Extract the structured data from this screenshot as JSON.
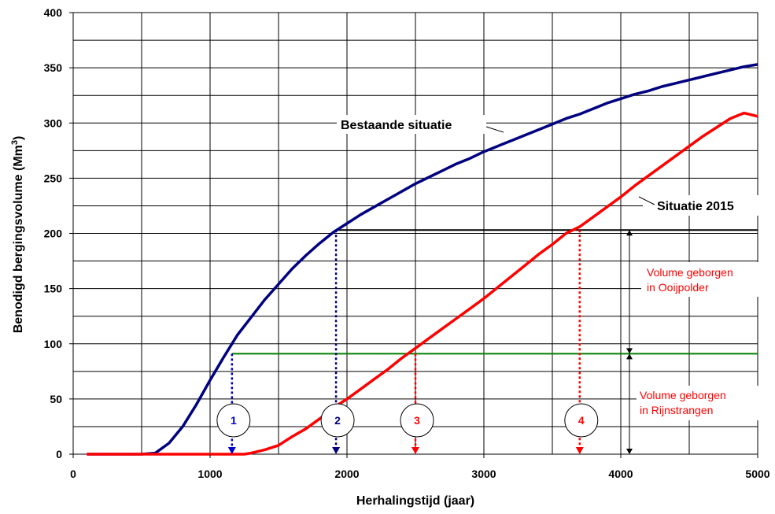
{
  "chart_data": {
    "type": "line",
    "xlabel": "Herhalingstijd (jaar)",
    "ylabel_main": "Benodigd bergingsvolume (Mm",
    "ylabel_sup": "3",
    "ylabel_end": ")",
    "xlim": [
      0,
      5000
    ],
    "ylim": [
      0,
      400
    ],
    "x_ticks": [
      0,
      1000,
      2000,
      3000,
      4000,
      5000
    ],
    "y_ticks": [
      0,
      50,
      100,
      150,
      200,
      250,
      300,
      350,
      400
    ],
    "grid": true,
    "series": [
      {
        "name": "Bestaande situatie",
        "color": "#000080",
        "points": [
          [
            100,
            0
          ],
          [
            500,
            0
          ],
          [
            600,
            1
          ],
          [
            700,
            10
          ],
          [
            800,
            25
          ],
          [
            900,
            45
          ],
          [
            1000,
            67
          ],
          [
            1100,
            88
          ],
          [
            1150,
            98
          ],
          [
            1200,
            108
          ],
          [
            1300,
            124
          ],
          [
            1400,
            140
          ],
          [
            1500,
            154
          ],
          [
            1600,
            168
          ],
          [
            1700,
            180
          ],
          [
            1800,
            191
          ],
          [
            1900,
            201
          ],
          [
            2000,
            209
          ],
          [
            2100,
            217
          ],
          [
            2200,
            224
          ],
          [
            2300,
            231
          ],
          [
            2400,
            238
          ],
          [
            2500,
            245
          ],
          [
            2600,
            251
          ],
          [
            2700,
            257
          ],
          [
            2800,
            263
          ],
          [
            2900,
            268
          ],
          [
            3000,
            274
          ],
          [
            3100,
            279
          ],
          [
            3200,
            284
          ],
          [
            3300,
            289
          ],
          [
            3400,
            294
          ],
          [
            3500,
            299
          ],
          [
            3600,
            304
          ],
          [
            3700,
            308
          ],
          [
            3800,
            313
          ],
          [
            3900,
            318
          ],
          [
            4000,
            322
          ],
          [
            4100,
            326
          ],
          [
            4200,
            329
          ],
          [
            4300,
            333
          ],
          [
            4400,
            336
          ],
          [
            4500,
            339
          ],
          [
            4600,
            342
          ],
          [
            4700,
            345
          ],
          [
            4800,
            348
          ],
          [
            4900,
            351
          ],
          [
            5000,
            353
          ]
        ]
      },
      {
        "name": "Situatie 2015",
        "color": "#ff0000",
        "points": [
          [
            100,
            0
          ],
          [
            1250,
            0
          ],
          [
            1300,
            1
          ],
          [
            1400,
            4
          ],
          [
            1500,
            8
          ],
          [
            1600,
            16
          ],
          [
            1700,
            23
          ],
          [
            1800,
            32
          ],
          [
            1900,
            42
          ],
          [
            2000,
            50
          ],
          [
            2100,
            59
          ],
          [
            2200,
            68
          ],
          [
            2300,
            77
          ],
          [
            2400,
            87
          ],
          [
            2500,
            96
          ],
          [
            2600,
            105
          ],
          [
            2700,
            114
          ],
          [
            2800,
            123
          ],
          [
            2900,
            132
          ],
          [
            3000,
            141
          ],
          [
            3100,
            151
          ],
          [
            3200,
            161
          ],
          [
            3300,
            171
          ],
          [
            3400,
            181
          ],
          [
            3500,
            190
          ],
          [
            3600,
            200
          ],
          [
            3700,
            206
          ],
          [
            3800,
            215
          ],
          [
            3900,
            224
          ],
          [
            4000,
            233
          ],
          [
            4100,
            243
          ],
          [
            4200,
            252
          ],
          [
            4300,
            261
          ],
          [
            4400,
            270
          ],
          [
            4500,
            279
          ],
          [
            4600,
            288
          ],
          [
            4700,
            296
          ],
          [
            4800,
            304
          ],
          [
            4900,
            309
          ],
          [
            5000,
            306
          ]
        ]
      }
    ],
    "hlines": [
      {
        "y": 203,
        "x_from": 1920,
        "x_to": 5000,
        "color": "#000000"
      },
      {
        "y": 91,
        "x_from": 1160,
        "x_to": 5000,
        "color": "#008000"
      }
    ],
    "drops": [
      {
        "label": "1",
        "x": 1160,
        "y_top": 91,
        "color": "#0000cc"
      },
      {
        "label": "2",
        "x": 1920,
        "y_top": 203,
        "color": "#000080"
      },
      {
        "label": "3",
        "x": 2500,
        "y_top": 91,
        "color": "#ff0000"
      },
      {
        "label": "4",
        "x": 3700,
        "y_top": 203,
        "color": "#ff0000"
      }
    ],
    "annotations": {
      "bestaande": "Bestaande situatie",
      "situatie2015": "Situatie 2015",
      "ooij_line1": "Volume geborgen",
      "ooij_line2": "in Ooijpolder",
      "rijn_line1": "Volume geborgen",
      "rijn_line2": "in Rijnstrangen"
    }
  }
}
